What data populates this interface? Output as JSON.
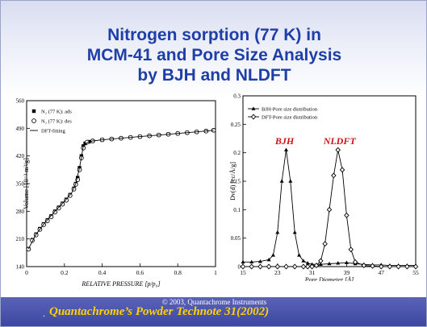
{
  "title_lines": [
    "Nitrogen sorption (77 K)  in",
    "MCM-41 and Pore Size Analysis",
    "by BJH and NLDFT"
  ],
  "footer": {
    "copyright": "© 2003, Quantachrome Instruments",
    "reference": "Quantachrome’s Powder Technote 31(2002)",
    "dot": "."
  },
  "colors": {
    "title": "#1e3ea8",
    "annotation": "#cc1111",
    "reference": "#ffd200",
    "footer_band": "#4a52ad"
  },
  "chart_data": [
    {
      "type": "scatter",
      "xlabel": "RELATIVE PRESSURE [p/p₀]",
      "ylabel": "Volume [10⁻³ m³/g]",
      "xlim": [
        0,
        1
      ],
      "ylim": [
        140,
        560
      ],
      "xticks": [
        0,
        0.2,
        0.4,
        0.6,
        0.8,
        1
      ],
      "yticks": [
        140,
        210,
        280,
        350,
        420,
        490,
        560
      ],
      "tick_labels_x": [
        "0",
        "0.2",
        "0.4",
        "0.6",
        "0.8",
        "1"
      ],
      "tick_labels_y": [
        "140",
        "210",
        "280",
        "350",
        "420",
        "490",
        "560"
      ],
      "legend_position": "top-left",
      "legend": [
        "N₂ (77 K): ads",
        "N₂ (77 K): des",
        "DFT-fitting"
      ],
      "series": [
        {
          "name": "N₂ (77 K): ads",
          "marker": "filled-square",
          "x": [
            0.01,
            0.03,
            0.05,
            0.07,
            0.09,
            0.11,
            0.13,
            0.15,
            0.17,
            0.19,
            0.21,
            0.23,
            0.25,
            0.26,
            0.27,
            0.28,
            0.29,
            0.3,
            0.31,
            0.33,
            0.35,
            0.4,
            0.45,
            0.5,
            0.55,
            0.6,
            0.65,
            0.7,
            0.75,
            0.8,
            0.85,
            0.9,
            0.95,
            0.99
          ],
          "y": [
            185,
            208,
            222,
            236,
            248,
            258,
            268,
            280,
            290,
            300,
            310,
            322,
            338,
            350,
            365,
            390,
            420,
            445,
            452,
            456,
            458,
            461,
            463,
            465,
            467,
            469,
            471,
            473,
            475,
            477,
            479,
            481,
            483,
            485
          ]
        },
        {
          "name": "N₂ (77 K): des",
          "marker": "open-circle",
          "x": [
            0.99,
            0.95,
            0.9,
            0.85,
            0.8,
            0.75,
            0.7,
            0.65,
            0.6,
            0.55,
            0.5,
            0.45,
            0.4,
            0.35,
            0.32,
            0.3,
            0.29,
            0.28,
            0.27,
            0.26,
            0.25,
            0.23,
            0.21,
            0.19,
            0.17,
            0.15,
            0.13,
            0.11,
            0.09,
            0.07,
            0.05,
            0.03,
            0.01
          ],
          "y": [
            485,
            483,
            481,
            479,
            477,
            475,
            473,
            471,
            469,
            467,
            465,
            463,
            461,
            458,
            455,
            440,
            415,
            385,
            360,
            348,
            336,
            320,
            308,
            298,
            288,
            278,
            266,
            256,
            246,
            234,
            220,
            206,
            184
          ]
        },
        {
          "name": "DFT-fitting",
          "marker": "line",
          "x": [
            0.01,
            0.05,
            0.1,
            0.15,
            0.2,
            0.24,
            0.26,
            0.28,
            0.3,
            0.32,
            0.35,
            0.4,
            0.5,
            0.6,
            0.7,
            0.8,
            0.9,
            0.99
          ],
          "y": [
            185,
            222,
            253,
            280,
            305,
            328,
            350,
            390,
            445,
            454,
            458,
            461,
            465,
            469,
            473,
            477,
            481,
            485
          ]
        }
      ]
    },
    {
      "type": "line",
      "xlabel": "Pore Diameter [Å]",
      "ylabel": "Dv(d) [cc/Å/g]",
      "xlim": [
        15,
        55
      ],
      "ylim": [
        0,
        0.3
      ],
      "xticks": [
        15,
        23,
        31,
        39,
        47,
        55
      ],
      "yticks": [
        0,
        0.05,
        0.1,
        0.15,
        0.2,
        0.25,
        0.3
      ],
      "tick_labels_x": [
        "15",
        "23",
        "31",
        "39",
        "47",
        "55"
      ],
      "tick_labels_y": [
        "0",
        "0.05",
        "0.1",
        "0.15",
        "0.2",
        "0.25",
        "0.3"
      ],
      "legend_position": "top-left",
      "legend": [
        "BJH-Pore size distribution",
        "DFT-Pore size distribution"
      ],
      "annotations": [
        "BJH",
        "NLDFT"
      ],
      "series": [
        {
          "name": "BJH-Pore size distribution",
          "marker": "filled-triangle",
          "x": [
            15,
            17,
            19,
            21,
            22,
            23,
            24,
            25,
            26,
            27,
            28,
            29,
            30,
            31,
            33,
            35,
            37,
            39,
            41,
            43,
            45,
            47,
            49,
            51,
            53,
            55
          ],
          "y": [
            0.008,
            0.008,
            0.009,
            0.012,
            0.02,
            0.06,
            0.15,
            0.205,
            0.15,
            0.06,
            0.02,
            0.01,
            0.006,
            0.004,
            0.004,
            0.005,
            0.006,
            0.007,
            0.005,
            0.004,
            0.003,
            0.003,
            0.002,
            0.002,
            0.002,
            0.002
          ]
        },
        {
          "name": "DFT-Pore size distribution",
          "marker": "open-diamond",
          "x": [
            15,
            17,
            19,
            21,
            23,
            25,
            27,
            29,
            30,
            31,
            32,
            33,
            34,
            35,
            36,
            37,
            38,
            39,
            40,
            41,
            43,
            45,
            47,
            49,
            51,
            53,
            55
          ],
          "y": [
            0,
            0,
            0,
            0,
            0,
            0,
            0,
            0,
            0,
            0,
            0.002,
            0.01,
            0.04,
            0.1,
            0.16,
            0.205,
            0.17,
            0.09,
            0.03,
            0.008,
            0.002,
            0.001,
            0,
            0,
            0,
            0,
            0
          ]
        }
      ]
    }
  ]
}
